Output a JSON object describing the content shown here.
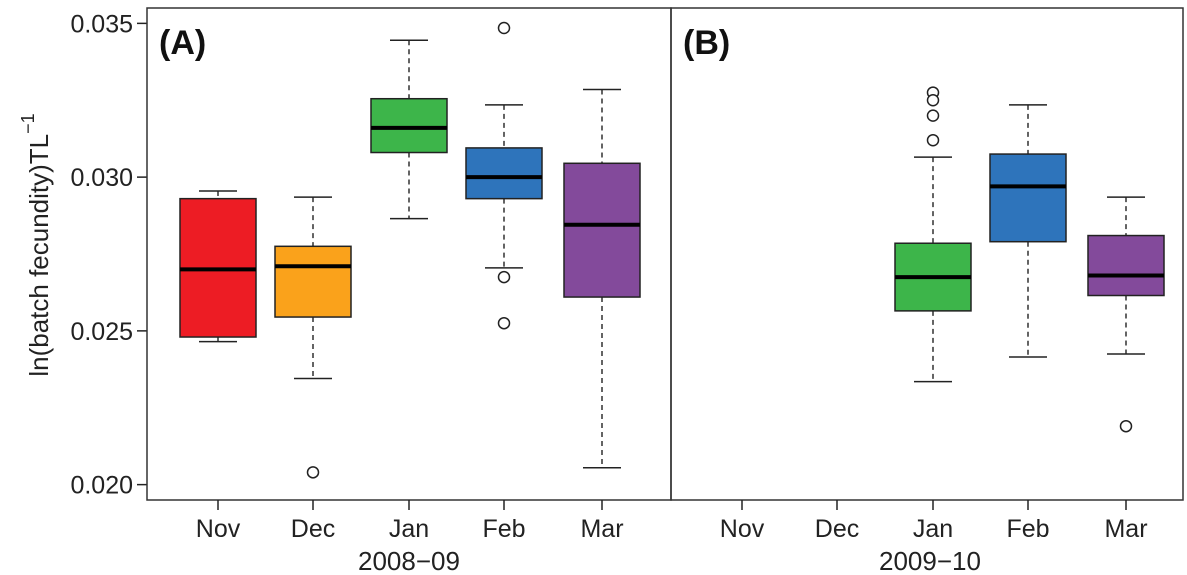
{
  "chart_data": {
    "type": "boxplot",
    "ylabel": "ln(batch fecundity)TL",
    "ylabel_superscript": "−1",
    "ylim": [
      0.0195,
      0.0355
    ],
    "yticks": [
      {
        "value": 0.02,
        "label": "0.020"
      },
      {
        "value": 0.025,
        "label": "0.025"
      },
      {
        "value": 0.03,
        "label": "0.030"
      },
      {
        "value": 0.035,
        "label": "0.035"
      }
    ],
    "grid": false,
    "categories": [
      "Nov",
      "Dec",
      "Jan",
      "Feb",
      "Mar"
    ],
    "panels": [
      {
        "label": "(A)",
        "xlabel": "2008−09",
        "boxes": [
          {
            "category": "Nov",
            "color": "#ed1c24",
            "whisker_low": 0.02465,
            "q1": 0.0248,
            "median": 0.027,
            "q3": 0.0293,
            "whisker_high": 0.02955,
            "outliers": []
          },
          {
            "category": "Dec",
            "color": "#faa21b",
            "whisker_low": 0.02345,
            "q1": 0.02545,
            "median": 0.0271,
            "q3": 0.02775,
            "whisker_high": 0.02935,
            "outliers": [
              0.0204
            ]
          },
          {
            "category": "Jan",
            "color": "#3db54a",
            "whisker_low": 0.02865,
            "q1": 0.0308,
            "median": 0.0316,
            "q3": 0.03255,
            "whisker_high": 0.03445,
            "outliers": []
          },
          {
            "category": "Feb",
            "color": "#2e74bb",
            "whisker_low": 0.02705,
            "q1": 0.0293,
            "median": 0.03,
            "q3": 0.03095,
            "whisker_high": 0.03235,
            "outliers": [
              0.03485,
              0.02675,
              0.02525
            ]
          },
          {
            "category": "Mar",
            "color": "#834a9b",
            "whisker_low": 0.02055,
            "q1": 0.0261,
            "median": 0.02845,
            "q3": 0.03045,
            "whisker_high": 0.03285,
            "outliers": []
          }
        ]
      },
      {
        "label": "(B)",
        "xlabel": "2009−10",
        "boxes": [
          {
            "category": "Jan",
            "color": "#3db54a",
            "whisker_low": 0.02335,
            "q1": 0.02565,
            "median": 0.02675,
            "q3": 0.02785,
            "whisker_high": 0.03065,
            "outliers": [
              0.03275,
              0.0325,
              0.032,
              0.0312
            ]
          },
          {
            "category": "Feb",
            "color": "#2e74bb",
            "whisker_low": 0.02415,
            "q1": 0.0279,
            "median": 0.0297,
            "q3": 0.03075,
            "whisker_high": 0.03235,
            "outliers": []
          },
          {
            "category": "Mar",
            "color": "#834a9b",
            "whisker_low": 0.02425,
            "q1": 0.02615,
            "median": 0.0268,
            "q3": 0.0281,
            "whisker_high": 0.02935,
            "outliers": [
              0.0219
            ]
          }
        ]
      }
    ]
  }
}
